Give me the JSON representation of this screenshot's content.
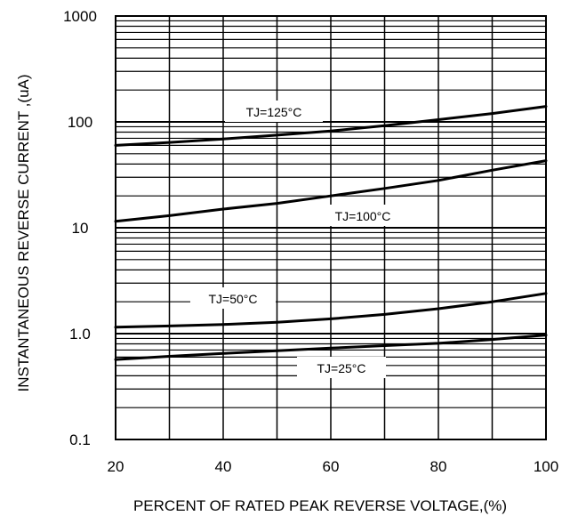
{
  "chart_data": {
    "type": "line",
    "title": "",
    "xlabel": "PERCENT OF RATED PEAK REVERSE VOLTAGE,(%)",
    "ylabel": "INSTANTANEOUS  REVERSE  CURRENT ,(uA)",
    "xlim": [
      20,
      100
    ],
    "ylim": [
      0.1,
      1000
    ],
    "yscale": "log",
    "grid": true,
    "x_ticks": [
      "20",
      "40",
      "60",
      "80",
      "100"
    ],
    "y_ticks": [
      "0.1",
      "1.0",
      "10",
      "100",
      "1000"
    ],
    "series": [
      {
        "name": "TJ=125°C",
        "x": [
          20,
          30,
          40,
          50,
          60,
          70,
          80,
          90,
          100
        ],
        "y": [
          60,
          64,
          69,
          75,
          82,
          92,
          105,
          120,
          140
        ]
      },
      {
        "name": "TJ=100°C",
        "x": [
          20,
          30,
          40,
          50,
          60,
          70,
          80,
          90,
          100
        ],
        "y": [
          11.5,
          13,
          15,
          17,
          20,
          23.5,
          28,
          35,
          43
        ]
      },
      {
        "name": "TJ=50°C",
        "x": [
          20,
          30,
          40,
          50,
          60,
          70,
          80,
          90,
          100
        ],
        "y": [
          1.15,
          1.18,
          1.22,
          1.28,
          1.38,
          1.52,
          1.72,
          2.0,
          2.4
        ]
      },
      {
        "name": "TJ=25°C",
        "x": [
          20,
          30,
          40,
          50,
          60,
          70,
          80,
          90,
          100
        ],
        "y": [
          0.57,
          0.61,
          0.65,
          0.69,
          0.73,
          0.77,
          0.81,
          0.88,
          0.97
        ]
      }
    ]
  }
}
